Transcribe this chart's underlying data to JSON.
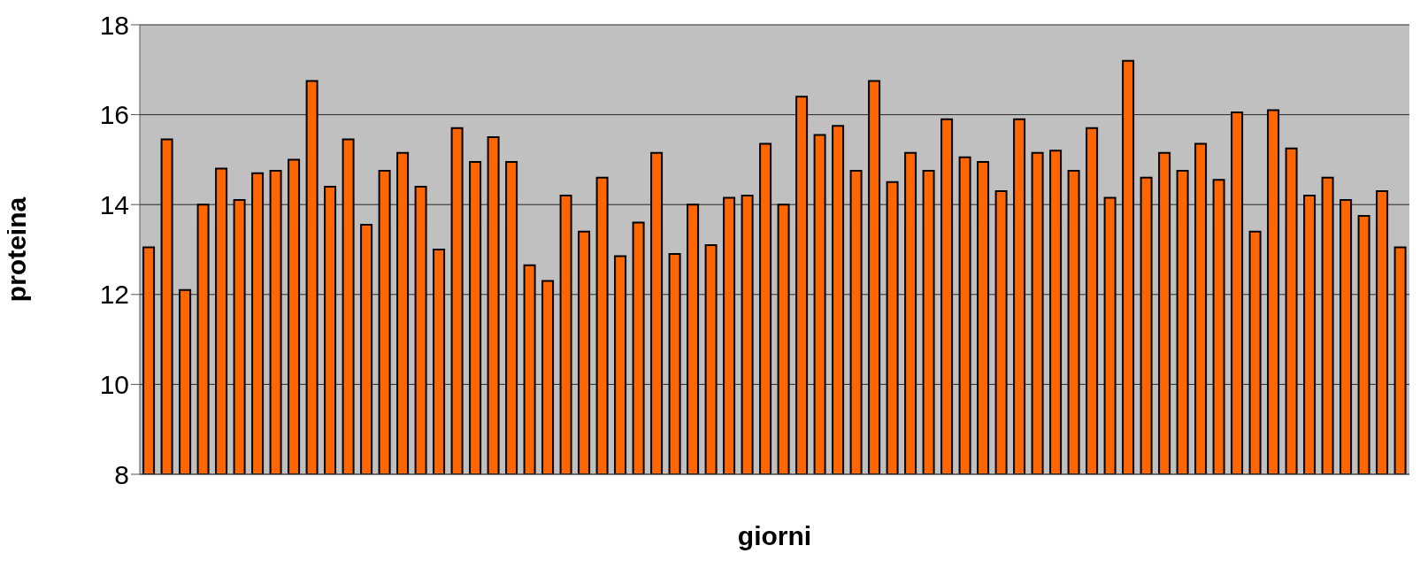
{
  "chart_data": {
    "type": "bar",
    "xlabel": "giorni",
    "ylabel": "proteina",
    "categories": [
      null,
      null,
      null,
      null,
      null,
      null,
      null,
      null,
      null,
      null,
      null,
      null,
      null,
      null,
      null,
      null,
      null,
      null,
      null,
      null,
      null,
      null,
      null,
      null,
      null,
      null,
      null,
      null,
      null,
      null,
      null,
      null,
      null,
      null,
      null,
      null,
      null,
      null,
      null,
      null,
      null,
      null,
      null,
      null,
      null,
      null,
      null,
      null,
      null,
      null,
      null,
      null,
      null,
      null,
      null,
      null,
      null,
      null,
      null,
      null,
      null,
      null,
      null,
      null,
      null,
      null,
      null,
      null,
      null,
      null
    ],
    "values": [
      13.05,
      15.45,
      12.1,
      14.0,
      14.8,
      14.1,
      14.7,
      14.75,
      15.0,
      16.75,
      14.4,
      15.45,
      13.55,
      14.75,
      15.15,
      14.4,
      13.0,
      15.7,
      14.95,
      15.5,
      14.95,
      12.65,
      12.3,
      14.2,
      13.4,
      14.6,
      12.85,
      13.6,
      15.15,
      12.9,
      14.0,
      13.1,
      14.15,
      14.2,
      15.35,
      14.0,
      16.4,
      15.55,
      15.75,
      14.75,
      16.75,
      14.5,
      15.15,
      14.75,
      15.9,
      15.05,
      14.95,
      14.3,
      15.9,
      15.15,
      15.2,
      14.75,
      15.7,
      14.15,
      17.2,
      14.6,
      15.15,
      14.75,
      15.35,
      14.55,
      16.05,
      13.4,
      16.1,
      15.25,
      14.2,
      14.6,
      14.1,
      13.75,
      14.3,
      13.05
    ],
    "color": "#ff6600",
    "ylim": [
      8,
      18
    ],
    "yticks": [
      8,
      10,
      12,
      14,
      16,
      18
    ],
    "grid": "y",
    "tick_labels": "y"
  }
}
